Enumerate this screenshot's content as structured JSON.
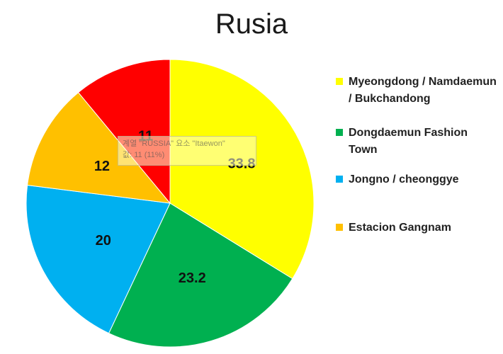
{
  "chart_data": {
    "type": "pie",
    "title": "Rusia",
    "categories": [
      "Myeongdong / Namdaemun / Bukchandong",
      "Dongdaemun Fashion Town",
      "Jongno / cheonggye",
      "Estacion Gangnam",
      "Itaewon"
    ],
    "values": [
      33.8,
      23.2,
      20,
      12,
      11
    ],
    "colors": [
      "#FFFF00",
      "#00B050",
      "#00B0F0",
      "#FFC000",
      "#FF0000"
    ],
    "data_labels": [
      "33.8",
      "23.2",
      "20",
      "12",
      "11"
    ],
    "legend_entries": [
      "Myeongdong / Namdaemun / Bukchandong",
      "Dongdaemun Fashion Town",
      "Jongno / cheonggye",
      "Estacion Gangnam"
    ],
    "legend_placement": "right"
  },
  "tooltip": {
    "line1": "계열 \"RUSSIA\" 요소 \"Itaewon\"",
    "line2": "값: 11 (11%)"
  }
}
